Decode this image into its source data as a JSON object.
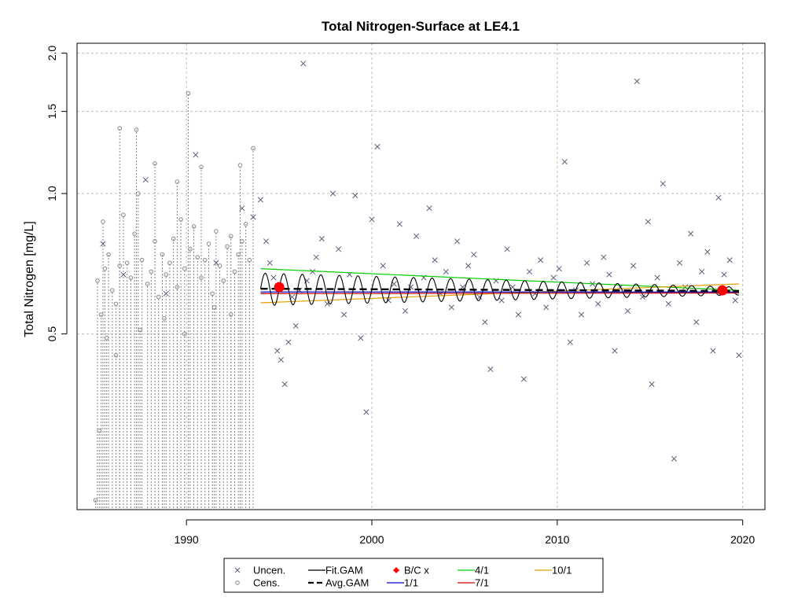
{
  "chart_data": {
    "type": "scatter",
    "title": "Total Nitrogen-Surface at LE4.1",
    "xlabel": "",
    "ylabel": "Total Nitrogen [mg/L]",
    "log_y": true,
    "xlim": [
      1984.1,
      2021.2
    ],
    "ylim": [
      0.21,
      2.1
    ],
    "x_ticks": [
      1990,
      2000,
      2010,
      2020
    ],
    "x_tick_labels": [
      "1990",
      "2000",
      "2010",
      "2020"
    ],
    "y_ticks": [
      0.5,
      1.0,
      1.5,
      2.0
    ],
    "y_tick_labels": [
      "0.5",
      "1.0",
      "1.5",
      "2.0"
    ],
    "grid": true,
    "legend_position": "bottom",
    "colors": {
      "uncensored": "#5a5f7a",
      "censored": "#888888",
      "fit_gam": "#000000",
      "avg_gam": "#000000",
      "bc": "#ff0000",
      "d1_1": "#0000cd",
      "d4_1": "#00cc00",
      "d7_1": "#cc0000",
      "d10_1": "#e69f00",
      "grid": "#bebebe"
    },
    "legend": [
      {
        "label": "Uncen.",
        "symbol": "x",
        "color": "#5a5f7a"
      },
      {
        "label": "Cens.",
        "symbol": "circle",
        "color": "#888888"
      },
      {
        "label": "Fit.GAM",
        "symbol": "line",
        "color": "#000000"
      },
      {
        "label": "Avg.GAM",
        "symbol": "dashed",
        "color": "#000000"
      },
      {
        "label": "B/C x",
        "symbol": "diamond",
        "color": "#ff0000"
      },
      {
        "label": "1/1",
        "symbol": "line",
        "color": "#0000cd"
      },
      {
        "label": "4/1",
        "symbol": "line",
        "color": "#00cc00"
      },
      {
        "label": "7/1",
        "symbol": "line",
        "color": "#cc0000"
      },
      {
        "label": "10/1",
        "symbol": "line",
        "color": "#e69f00"
      }
    ],
    "censored_points": [
      {
        "x": 1985.2,
        "y": 0.65
      },
      {
        "x": 1985.4,
        "y": 0.55
      },
      {
        "x": 1985.6,
        "y": 0.69
      },
      {
        "x": 1985.8,
        "y": 0.74
      },
      {
        "x": 1986.0,
        "y": 0.62
      },
      {
        "x": 1986.2,
        "y": 0.58
      },
      {
        "x": 1986.4,
        "y": 0.7
      },
      {
        "x": 1986.6,
        "y": 0.9
      },
      {
        "x": 1986.8,
        "y": 0.71
      },
      {
        "x": 1987.0,
        "y": 0.66
      },
      {
        "x": 1987.2,
        "y": 0.82
      },
      {
        "x": 1987.4,
        "y": 1.0
      },
      {
        "x": 1987.6,
        "y": 0.72
      },
      {
        "x": 1987.9,
        "y": 0.64
      },
      {
        "x": 1988.1,
        "y": 0.68
      },
      {
        "x": 1988.3,
        "y": 0.79
      },
      {
        "x": 1988.5,
        "y": 0.6
      },
      {
        "x": 1988.7,
        "y": 0.74
      },
      {
        "x": 1988.9,
        "y": 0.67
      },
      {
        "x": 1989.1,
        "y": 0.71
      },
      {
        "x": 1989.3,
        "y": 0.8
      },
      {
        "x": 1989.5,
        "y": 0.63
      },
      {
        "x": 1989.7,
        "y": 0.88
      },
      {
        "x": 1989.9,
        "y": 0.69
      },
      {
        "x": 1990.2,
        "y": 0.76
      },
      {
        "x": 1990.4,
        "y": 0.85
      },
      {
        "x": 1990.6,
        "y": 0.73
      },
      {
        "x": 1990.8,
        "y": 0.66
      },
      {
        "x": 1991.0,
        "y": 0.72
      },
      {
        "x": 1991.2,
        "y": 0.78
      },
      {
        "x": 1991.4,
        "y": 0.61
      },
      {
        "x": 1991.6,
        "y": 0.83
      },
      {
        "x": 1991.8,
        "y": 0.7
      },
      {
        "x": 1992.0,
        "y": 0.65
      },
      {
        "x": 1992.2,
        "y": 0.77
      },
      {
        "x": 1992.4,
        "y": 0.81
      },
      {
        "x": 1992.6,
        "y": 0.68
      },
      {
        "x": 1992.8,
        "y": 0.74
      },
      {
        "x": 1993.0,
        "y": 0.79
      },
      {
        "x": 1993.2,
        "y": 0.86
      },
      {
        "x": 1993.4,
        "y": 0.72
      },
      {
        "x": 1985.5,
        "y": 0.87
      },
      {
        "x": 1986.4,
        "y": 1.38
      },
      {
        "x": 1987.3,
        "y": 1.37
      },
      {
        "x": 1988.3,
        "y": 1.16
      },
      {
        "x": 1989.5,
        "y": 1.06
      },
      {
        "x": 1990.1,
        "y": 1.64
      },
      {
        "x": 1990.8,
        "y": 1.14
      },
      {
        "x": 1992.9,
        "y": 1.15
      },
      {
        "x": 1993.6,
        "y": 1.25
      },
      {
        "x": 1985.1,
        "y": 0.22
      },
      {
        "x": 1985.3,
        "y": 0.31
      },
      {
        "x": 1985.7,
        "y": 0.49
      },
      {
        "x": 1986.2,
        "y": 0.45
      },
      {
        "x": 1987.5,
        "y": 0.51
      },
      {
        "x": 1988.8,
        "y": 0.54
      },
      {
        "x": 1989.9,
        "y": 0.5
      },
      {
        "x": 1991.5,
        "y": 0.57
      },
      {
        "x": 1992.4,
        "y": 0.55
      }
    ],
    "uncensored_points": [
      {
        "x": 1985.5,
        "y": 0.78
      },
      {
        "x": 1986.6,
        "y": 0.67
      },
      {
        "x": 1987.8,
        "y": 1.07
      },
      {
        "x": 1988.9,
        "y": 0.61
      },
      {
        "x": 1990.5,
        "y": 1.21
      },
      {
        "x": 1991.6,
        "y": 0.71
      },
      {
        "x": 1993.0,
        "y": 0.93
      },
      {
        "x": 1993.6,
        "y": 0.89
      },
      {
        "x": 1994.0,
        "y": 0.97
      },
      {
        "x": 1994.3,
        "y": 0.79
      },
      {
        "x": 1994.5,
        "y": 0.71
      },
      {
        "x": 1994.7,
        "y": 0.66
      },
      {
        "x": 1994.9,
        "y": 0.46
      },
      {
        "x": 1995.1,
        "y": 0.44
      },
      {
        "x": 1995.3,
        "y": 0.39
      },
      {
        "x": 1995.5,
        "y": 0.48
      },
      {
        "x": 1995.7,
        "y": 0.6
      },
      {
        "x": 1995.9,
        "y": 0.52
      },
      {
        "x": 1996.1,
        "y": 0.62
      },
      {
        "x": 1996.3,
        "y": 1.9
      },
      {
        "x": 1996.5,
        "y": 0.65
      },
      {
        "x": 1996.8,
        "y": 0.68
      },
      {
        "x": 1997.0,
        "y": 0.73
      },
      {
        "x": 1997.3,
        "y": 0.8
      },
      {
        "x": 1997.6,
        "y": 0.58
      },
      {
        "x": 1997.9,
        "y": 1.0
      },
      {
        "x": 1998.2,
        "y": 0.76
      },
      {
        "x": 1998.5,
        "y": 0.55
      },
      {
        "x": 1998.8,
        "y": 0.67
      },
      {
        "x": 1999.1,
        "y": 0.99
      },
      {
        "x": 1999.4,
        "y": 0.49
      },
      {
        "x": 1999.7,
        "y": 0.34
      },
      {
        "x": 2000.0,
        "y": 0.88
      },
      {
        "x": 2000.3,
        "y": 1.26
      },
      {
        "x": 2000.6,
        "y": 0.7
      },
      {
        "x": 2000.9,
        "y": 0.59
      },
      {
        "x": 2001.2,
        "y": 0.64
      },
      {
        "x": 2001.5,
        "y": 0.86
      },
      {
        "x": 2001.8,
        "y": 0.56
      },
      {
        "x": 2002.1,
        "y": 0.63
      },
      {
        "x": 2002.4,
        "y": 0.81
      },
      {
        "x": 2002.8,
        "y": 0.66
      },
      {
        "x": 2003.1,
        "y": 0.93
      },
      {
        "x": 2003.4,
        "y": 0.72
      },
      {
        "x": 2003.7,
        "y": 0.61
      },
      {
        "x": 2004.0,
        "y": 0.68
      },
      {
        "x": 2004.3,
        "y": 0.57
      },
      {
        "x": 2004.6,
        "y": 0.79
      },
      {
        "x": 2004.9,
        "y": 0.63
      },
      {
        "x": 2005.2,
        "y": 0.7
      },
      {
        "x": 2005.5,
        "y": 0.74
      },
      {
        "x": 2005.8,
        "y": 0.6
      },
      {
        "x": 2006.1,
        "y": 0.53
      },
      {
        "x": 2006.4,
        "y": 0.42
      },
      {
        "x": 2006.7,
        "y": 0.65
      },
      {
        "x": 2007.0,
        "y": 0.59
      },
      {
        "x": 2007.3,
        "y": 0.76
      },
      {
        "x": 2007.6,
        "y": 0.63
      },
      {
        "x": 2007.9,
        "y": 0.55
      },
      {
        "x": 2008.2,
        "y": 0.4
      },
      {
        "x": 2008.5,
        "y": 0.68
      },
      {
        "x": 2008.8,
        "y": 0.61
      },
      {
        "x": 2009.1,
        "y": 0.72
      },
      {
        "x": 2009.4,
        "y": 0.57
      },
      {
        "x": 2009.8,
        "y": 0.66
      },
      {
        "x": 2010.1,
        "y": 0.69
      },
      {
        "x": 2010.4,
        "y": 1.17
      },
      {
        "x": 2010.7,
        "y": 0.48
      },
      {
        "x": 2011.0,
        "y": 0.62
      },
      {
        "x": 2011.3,
        "y": 0.55
      },
      {
        "x": 2011.6,
        "y": 0.71
      },
      {
        "x": 2011.9,
        "y": 0.64
      },
      {
        "x": 2012.2,
        "y": 0.58
      },
      {
        "x": 2012.5,
        "y": 0.73
      },
      {
        "x": 2012.8,
        "y": 0.67
      },
      {
        "x": 2013.1,
        "y": 0.46
      },
      {
        "x": 2013.4,
        "y": 0.63
      },
      {
        "x": 2013.8,
        "y": 0.56
      },
      {
        "x": 2014.1,
        "y": 0.7
      },
      {
        "x": 2014.3,
        "y": 1.74
      },
      {
        "x": 2014.6,
        "y": 0.6
      },
      {
        "x": 2014.9,
        "y": 0.87
      },
      {
        "x": 2015.1,
        "y": 0.39
      },
      {
        "x": 2015.4,
        "y": 0.66
      },
      {
        "x": 2015.7,
        "y": 1.05
      },
      {
        "x": 2016.0,
        "y": 0.58
      },
      {
        "x": 2016.3,
        "y": 0.27
      },
      {
        "x": 2016.6,
        "y": 0.71
      },
      {
        "x": 2016.9,
        "y": 0.63
      },
      {
        "x": 2017.2,
        "y": 0.82
      },
      {
        "x": 2017.5,
        "y": 0.53
      },
      {
        "x": 2017.8,
        "y": 0.68
      },
      {
        "x": 2018.1,
        "y": 0.75
      },
      {
        "x": 2018.4,
        "y": 0.46
      },
      {
        "x": 2018.7,
        "y": 0.98
      },
      {
        "x": 2019.0,
        "y": 0.67
      },
      {
        "x": 2019.3,
        "y": 0.72
      },
      {
        "x": 2019.6,
        "y": 0.59
      },
      {
        "x": 2019.8,
        "y": 0.45
      }
    ],
    "bc_points": [
      {
        "x": 1995.0,
        "y": 0.63
      },
      {
        "x": 2018.9,
        "y": 0.62
      }
    ],
    "series": [
      {
        "name": "4/1",
        "key": "d4_1",
        "x": [
          1994.0,
          2019.8
        ],
        "y": [
          0.69,
          0.62
        ]
      },
      {
        "name": "10/1",
        "key": "d10_1",
        "x": [
          1994.0,
          2019.8
        ],
        "y": [
          0.583,
          0.64
        ]
      },
      {
        "name": "1/1",
        "key": "d1_1",
        "x": [
          1994.0,
          2019.8
        ],
        "y": [
          0.615,
          0.615
        ]
      },
      {
        "name": "7/1",
        "key": "d7_1",
        "x": [
          1994.0,
          2019.8
        ],
        "y": [
          0.61,
          0.612
        ]
      },
      {
        "name": "Avg.GAM",
        "key": "avg_gam",
        "x": [
          1994.0,
          2019.8
        ],
        "y": [
          0.625,
          0.618
        ]
      },
      {
        "name": "Fit.GAM",
        "key": "fit_gam",
        "type": "seasonal",
        "x_start": 1994.0,
        "x_end": 2019.8,
        "center_start": 0.625,
        "center_end": 0.618,
        "amp_start": 0.05,
        "amp_end": 0.012,
        "period_years": 1.0
      }
    ]
  }
}
